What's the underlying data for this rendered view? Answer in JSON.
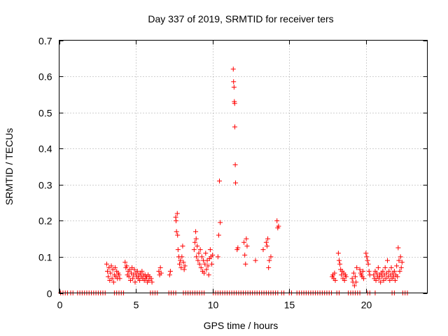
{
  "chart_data": {
    "type": "scatter",
    "title": "Day 337 of 2019, SRMTID for receiver ters",
    "xlabel": "GPS time / hours",
    "ylabel": "SRMTID / TECUs",
    "xlim": [
      0,
      24
    ],
    "ylim": [
      0,
      0.7
    ],
    "xticks": [
      0,
      5,
      10,
      15,
      20
    ],
    "yticks": [
      0,
      0.1,
      0.2,
      0.3,
      0.4,
      0.5,
      0.6,
      0.7
    ],
    "grid": true,
    "marker": "+",
    "color": "#ff0000",
    "series": [
      {
        "name": "SRMTID",
        "points": [
          [
            0.1,
            0
          ],
          [
            0.25,
            0
          ],
          [
            0.4,
            0
          ],
          [
            0.55,
            0
          ],
          [
            0.75,
            0
          ],
          [
            0.9,
            0
          ],
          [
            1.2,
            0
          ],
          [
            1.35,
            0
          ],
          [
            1.5,
            0
          ],
          [
            1.65,
            0
          ],
          [
            1.8,
            0
          ],
          [
            1.95,
            0
          ],
          [
            2.1,
            0
          ],
          [
            2.25,
            0
          ],
          [
            2.4,
            0
          ],
          [
            2.55,
            0
          ],
          [
            2.7,
            0
          ],
          [
            2.85,
            0
          ],
          [
            3.0,
            0
          ],
          [
            3.6,
            0
          ],
          [
            3.75,
            0
          ],
          [
            3.9,
            0
          ],
          [
            4.05,
            0
          ],
          [
            4.2,
            0
          ],
          [
            5.95,
            0
          ],
          [
            6.1,
            0
          ],
          [
            6.25,
            0
          ],
          [
            6.4,
            0
          ],
          [
            7.15,
            0
          ],
          [
            7.3,
            0
          ],
          [
            7.45,
            0
          ],
          [
            7.6,
            0
          ],
          [
            8.1,
            0
          ],
          [
            8.25,
            0
          ],
          [
            8.4,
            0
          ],
          [
            8.55,
            0
          ],
          [
            8.7,
            0
          ],
          [
            8.85,
            0
          ],
          [
            9.0,
            0
          ],
          [
            9.15,
            0
          ],
          [
            9.3,
            0
          ],
          [
            9.45,
            0
          ],
          [
            10.05,
            0
          ],
          [
            10.2,
            0
          ],
          [
            10.35,
            0
          ],
          [
            10.5,
            0
          ],
          [
            10.65,
            0
          ],
          [
            10.8,
            0
          ],
          [
            10.95,
            0
          ],
          [
            11.1,
            0
          ],
          [
            11.25,
            0
          ],
          [
            11.4,
            0
          ],
          [
            11.55,
            0
          ],
          [
            11.7,
            0
          ],
          [
            11.85,
            0
          ],
          [
            12.0,
            0
          ],
          [
            12.15,
            0
          ],
          [
            12.3,
            0
          ],
          [
            12.45,
            0
          ],
          [
            12.6,
            0
          ],
          [
            12.75,
            0
          ],
          [
            12.9,
            0
          ],
          [
            13.05,
            0
          ],
          [
            13.2,
            0
          ],
          [
            13.35,
            0
          ],
          [
            13.5,
            0
          ],
          [
            13.65,
            0
          ],
          [
            13.8,
            0
          ],
          [
            13.95,
            0
          ],
          [
            14.1,
            0
          ],
          [
            14.25,
            0
          ],
          [
            14.5,
            0
          ],
          [
            14.65,
            0
          ],
          [
            15.0,
            0
          ],
          [
            15.15,
            0
          ],
          [
            15.5,
            0
          ],
          [
            15.65,
            0
          ],
          [
            15.8,
            0
          ],
          [
            15.95,
            0
          ],
          [
            16.1,
            0
          ],
          [
            16.25,
            0
          ],
          [
            16.4,
            0
          ],
          [
            16.55,
            0
          ],
          [
            16.7,
            0
          ],
          [
            16.85,
            0
          ],
          [
            17.0,
            0
          ],
          [
            17.15,
            0
          ],
          [
            17.3,
            0
          ],
          [
            17.45,
            0
          ],
          [
            17.6,
            0
          ],
          [
            17.75,
            0
          ],
          [
            18.1,
            0
          ],
          [
            18.25,
            0
          ],
          [
            18.85,
            0
          ],
          [
            19.0,
            0
          ],
          [
            19.15,
            0
          ],
          [
            19.3,
            0
          ],
          [
            19.45,
            0
          ],
          [
            19.6,
            0
          ],
          [
            20.1,
            0
          ],
          [
            20.25,
            0
          ],
          [
            20.6,
            0
          ],
          [
            21.7,
            0
          ],
          [
            21.85,
            0
          ],
          [
            22.4,
            0
          ],
          [
            22.55,
            0
          ],
          [
            22.7,
            0
          ],
          [
            3.1,
            0.08
          ],
          [
            3.15,
            0.06
          ],
          [
            3.2,
            0.045
          ],
          [
            3.25,
            0.07
          ],
          [
            3.3,
            0.035
          ],
          [
            3.35,
            0.055
          ],
          [
            3.4,
            0.075
          ],
          [
            3.45,
            0.04
          ],
          [
            3.5,
            0.065
          ],
          [
            3.55,
            0.03
          ],
          [
            3.6,
            0.05
          ],
          [
            3.65,
            0.07
          ],
          [
            3.7,
            0.045
          ],
          [
            3.75,
            0.06
          ],
          [
            3.8,
            0.04
          ],
          [
            3.85,
            0.055
          ],
          [
            3.9,
            0.05
          ],
          [
            3.95,
            0.04
          ],
          [
            4.3,
            0.085
          ],
          [
            4.35,
            0.07
          ],
          [
            4.4,
            0.075
          ],
          [
            4.45,
            0.05
          ],
          [
            4.5,
            0.06
          ],
          [
            4.55,
            0.045
          ],
          [
            4.6,
            0.065
          ],
          [
            4.65,
            0.035
          ],
          [
            4.7,
            0.055
          ],
          [
            4.75,
            0.07
          ],
          [
            4.8,
            0.04
          ],
          [
            4.85,
            0.05
          ],
          [
            4.9,
            0.065
          ],
          [
            4.95,
            0.03
          ],
          [
            5.0,
            0.055
          ],
          [
            5.05,
            0.045
          ],
          [
            5.1,
            0.06
          ],
          [
            5.15,
            0.04
          ],
          [
            5.2,
            0.05
          ],
          [
            5.25,
            0.035
          ],
          [
            5.3,
            0.055
          ],
          [
            5.35,
            0.045
          ],
          [
            5.4,
            0.06
          ],
          [
            5.45,
            0.04
          ],
          [
            5.5,
            0.05
          ],
          [
            5.55,
            0.035
          ],
          [
            5.6,
            0.05
          ],
          [
            5.65,
            0.04
          ],
          [
            5.7,
            0.045
          ],
          [
            5.75,
            0.03
          ],
          [
            5.8,
            0.05
          ],
          [
            5.85,
            0.035
          ],
          [
            5.9,
            0.045
          ],
          [
            6.0,
            0.04
          ],
          [
            6.05,
            0.03
          ],
          [
            6.5,
            0.06
          ],
          [
            6.55,
            0.05
          ],
          [
            6.6,
            0.07
          ],
          [
            6.65,
            0.055
          ],
          [
            7.2,
            0.05
          ],
          [
            7.25,
            0.06
          ],
          [
            7.6,
            0.21
          ],
          [
            7.62,
            0.2
          ],
          [
            7.65,
            0.17
          ],
          [
            7.7,
            0.22
          ],
          [
            7.72,
            0.16
          ],
          [
            7.75,
            0.12
          ],
          [
            7.8,
            0.1
          ],
          [
            7.85,
            0.08
          ],
          [
            7.9,
            0.09
          ],
          [
            7.95,
            0.07
          ],
          [
            8.0,
            0.1
          ],
          [
            8.05,
            0.13
          ],
          [
            8.1,
            0.085
          ],
          [
            8.15,
            0.065
          ],
          [
            8.2,
            0.075
          ],
          [
            8.8,
            0.12
          ],
          [
            8.85,
            0.14
          ],
          [
            8.9,
            0.17
          ],
          [
            8.93,
            0.15
          ],
          [
            8.95,
            0.1
          ],
          [
            9.0,
            0.13
          ],
          [
            9.05,
            0.09
          ],
          [
            9.1,
            0.11
          ],
          [
            9.15,
            0.08
          ],
          [
            9.2,
            0.12
          ],
          [
            9.25,
            0.07
          ],
          [
            9.3,
            0.1
          ],
          [
            9.35,
            0.06
          ],
          [
            9.4,
            0.09
          ],
          [
            9.45,
            0.055
          ],
          [
            9.5,
            0.08
          ],
          [
            9.55,
            0.11
          ],
          [
            9.6,
            0.065
          ],
          [
            9.65,
            0.09
          ],
          [
            9.7,
            0.075
          ],
          [
            9.75,
            0.05
          ],
          [
            9.8,
            0.095
          ],
          [
            9.85,
            0.12
          ],
          [
            9.9,
            0.1
          ],
          [
            9.95,
            0.08
          ],
          [
            10.0,
            0.105
          ],
          [
            10.35,
            0.1
          ],
          [
            10.4,
            0.16
          ],
          [
            10.45,
            0.31
          ],
          [
            10.5,
            0.195
          ],
          [
            11.35,
            0.62
          ],
          [
            11.37,
            0.585
          ],
          [
            11.4,
            0.57
          ],
          [
            11.42,
            0.53
          ],
          [
            11.44,
            0.525
          ],
          [
            11.45,
            0.46
          ],
          [
            11.48,
            0.355
          ],
          [
            11.5,
            0.305
          ],
          [
            11.6,
            0.12
          ],
          [
            11.65,
            0.125
          ],
          [
            12.05,
            0.14
          ],
          [
            12.1,
            0.105
          ],
          [
            12.15,
            0.08
          ],
          [
            12.2,
            0.15
          ],
          [
            12.25,
            0.13
          ],
          [
            12.8,
            0.09
          ],
          [
            13.3,
            0.12
          ],
          [
            13.5,
            0.14
          ],
          [
            13.55,
            0.13
          ],
          [
            13.6,
            0.15
          ],
          [
            13.65,
            0.07
          ],
          [
            13.7,
            0.09
          ],
          [
            13.8,
            0.1
          ],
          [
            14.2,
            0.2
          ],
          [
            14.25,
            0.18
          ],
          [
            14.3,
            0.185
          ],
          [
            17.8,
            0.045
          ],
          [
            17.85,
            0.05
          ],
          [
            17.9,
            0.04
          ],
          [
            17.95,
            0.055
          ],
          [
            18.0,
            0.035
          ],
          [
            18.2,
            0.11
          ],
          [
            18.25,
            0.09
          ],
          [
            18.3,
            0.08
          ],
          [
            18.35,
            0.065
          ],
          [
            18.4,
            0.05
          ],
          [
            18.45,
            0.06
          ],
          [
            18.5,
            0.04
          ],
          [
            18.55,
            0.055
          ],
          [
            18.6,
            0.035
          ],
          [
            18.65,
            0.05
          ],
          [
            18.7,
            0.045
          ],
          [
            19.1,
            0.04
          ],
          [
            19.15,
            0.03
          ],
          [
            19.2,
            0.055
          ],
          [
            19.25,
            0.02
          ],
          [
            19.3,
            0.045
          ],
          [
            19.35,
            0.03
          ],
          [
            19.4,
            0.07
          ],
          [
            19.6,
            0.065
          ],
          [
            19.65,
            0.055
          ],
          [
            19.7,
            0.05
          ],
          [
            19.75,
            0.045
          ],
          [
            19.8,
            0.06
          ],
          [
            19.85,
            0.04
          ],
          [
            20.0,
            0.11
          ],
          [
            20.05,
            0.1
          ],
          [
            20.1,
            0.09
          ],
          [
            20.15,
            0.08
          ],
          [
            20.2,
            0.06
          ],
          [
            20.25,
            0.05
          ],
          [
            20.5,
            0.05
          ],
          [
            20.55,
            0.04
          ],
          [
            20.6,
            0.06
          ],
          [
            20.65,
            0.035
          ],
          [
            20.7,
            0.055
          ],
          [
            20.75,
            0.045
          ],
          [
            20.8,
            0.07
          ],
          [
            20.85,
            0.04
          ],
          [
            20.9,
            0.05
          ],
          [
            20.95,
            0.03
          ],
          [
            21.0,
            0.055
          ],
          [
            21.05,
            0.045
          ],
          [
            21.1,
            0.06
          ],
          [
            21.15,
            0.035
          ],
          [
            21.2,
            0.05
          ],
          [
            21.25,
            0.07
          ],
          [
            21.3,
            0.04
          ],
          [
            21.35,
            0.055
          ],
          [
            21.4,
            0.09
          ],
          [
            21.45,
            0.045
          ],
          [
            21.5,
            0.06
          ],
          [
            21.55,
            0.035
          ],
          [
            21.6,
            0.05
          ],
          [
            21.65,
            0.07
          ],
          [
            21.7,
            0.04
          ],
          [
            21.75,
            0.055
          ],
          [
            21.8,
            0.045
          ],
          [
            21.85,
            0.06
          ],
          [
            21.9,
            0.035
          ],
          [
            21.95,
            0.05
          ],
          [
            22.0,
            0.075
          ],
          [
            22.05,
            0.045
          ],
          [
            22.1,
            0.125
          ],
          [
            22.15,
            0.09
          ],
          [
            22.2,
            0.06
          ],
          [
            22.25,
            0.1
          ],
          [
            22.3,
            0.07
          ],
          [
            22.35,
            0.085
          ]
        ]
      }
    ]
  }
}
